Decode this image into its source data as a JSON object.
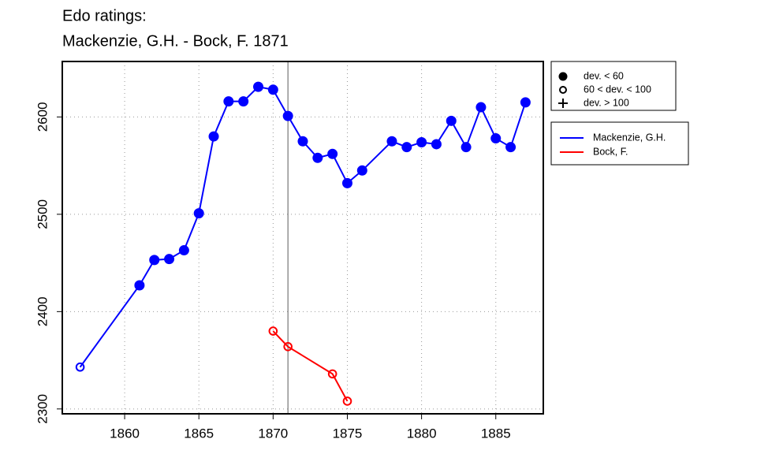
{
  "chart_data": {
    "type": "line",
    "title": "Edo ratings:",
    "subtitle": "Mackenzie, G.H. - Bock, F. 1871",
    "xlim": [
      1855.8,
      1888.2
    ],
    "xticks": [
      1860,
      1865,
      1870,
      1875,
      1880,
      1885
    ],
    "ylim": [
      2295,
      2657
    ],
    "yticks": [
      2300,
      2400,
      2500,
      2600
    ],
    "grid": true,
    "vline": 1871,
    "series": [
      {
        "name": "Mackenzie, G.H.",
        "color": "#0000ff",
        "x": [
          1857,
          1861,
          1862,
          1863,
          1864,
          1865,
          1866,
          1867,
          1868,
          1869,
          1870,
          1871,
          1872,
          1873,
          1874,
          1875,
          1876,
          1878,
          1879,
          1880,
          1881,
          1882,
          1883,
          1884,
          1885,
          1886,
          1887
        ],
        "values": [
          2343,
          2427,
          2453,
          2454,
          2463,
          2501,
          2580,
          2616,
          2616,
          2631,
          2628,
          2601,
          2575,
          2558,
          2562,
          2532,
          2545,
          2575,
          2569,
          2574,
          2572,
          2596,
          2569,
          2610,
          2578,
          2569,
          2615
        ],
        "markers": [
          "open",
          "filled",
          "filled",
          "filled",
          "filled",
          "filled",
          "filled",
          "filled",
          "filled",
          "filled",
          "filled",
          "filled",
          "filled",
          "filled",
          "filled",
          "filled",
          "filled",
          "filled",
          "filled",
          "filled",
          "filled",
          "filled",
          "filled",
          "filled",
          "filled",
          "filled",
          "filled"
        ]
      },
      {
        "name": "Bock, F.",
        "color": "#ff0000",
        "x": [
          1870,
          1871,
          1874,
          1875
        ],
        "values": [
          2380,
          2364,
          2336,
          2308
        ],
        "markers": [
          "open",
          "open",
          "open",
          "open"
        ]
      }
    ],
    "marker_legend": [
      {
        "label": "dev. < 60",
        "marker": "filled"
      },
      {
        "label": "60 < dev. < 100",
        "marker": "open"
      },
      {
        "label": "dev. > 100",
        "marker": "plus"
      }
    ]
  }
}
